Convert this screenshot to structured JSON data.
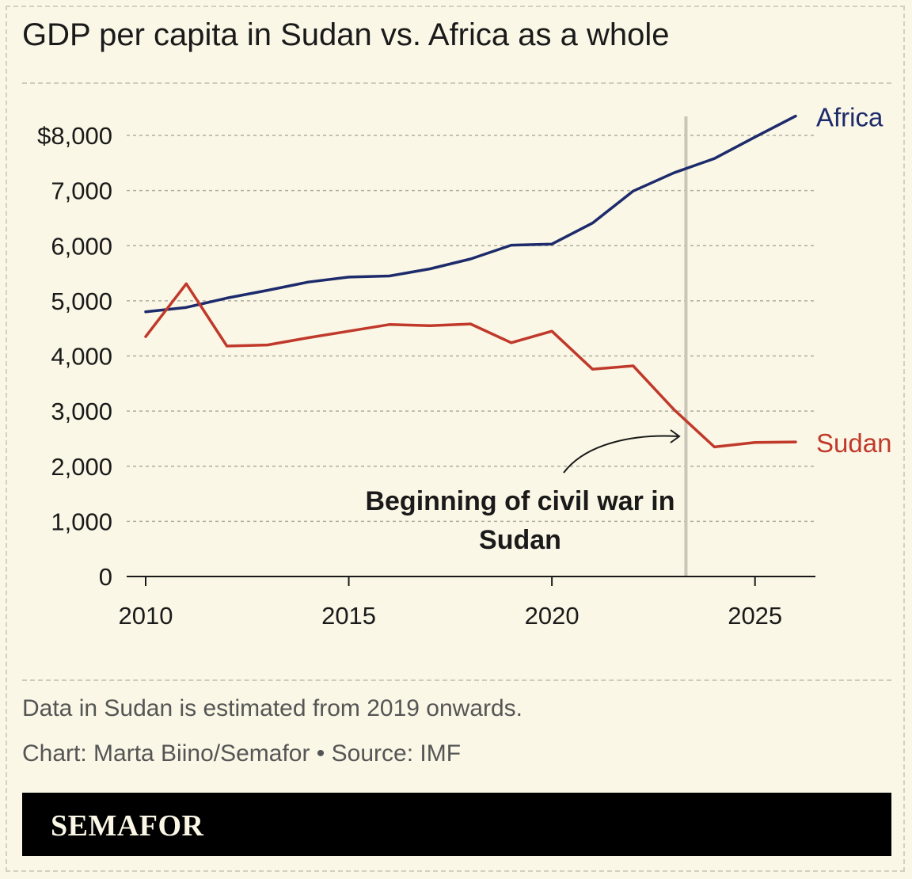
{
  "title": "GDP per capita in Sudan vs. Africa as a whole",
  "footnote": "Data in Sudan is estimated from 2019 onwards.",
  "credit": "Chart: Marta Biino/Semafor • Source: IMF",
  "brand": "SEMAFOR",
  "annotation": {
    "line1": "Beginning of civil war in",
    "line2": "Sudan",
    "marker_year": 2023.3
  },
  "colors": {
    "background": "#faf7e6",
    "africa": "#1d2a6b",
    "sudan": "#c0392b",
    "marker": "#c8c6b8",
    "grid": "#b0ad9f"
  },
  "chart_data": {
    "type": "line",
    "x": [
      2010,
      2011,
      2012,
      2013,
      2014,
      2015,
      2016,
      2017,
      2018,
      2019,
      2020,
      2021,
      2022,
      2023,
      2024,
      2025,
      2026
    ],
    "series": [
      {
        "name": "Africa",
        "values": [
          4800,
          4880,
          5050,
          5190,
          5340,
          5430,
          5450,
          5580,
          5760,
          6010,
          6030,
          6410,
          6990,
          7320,
          7580,
          7970,
          8350
        ]
      },
      {
        "name": "Sudan",
        "values": [
          4350,
          5310,
          4180,
          4200,
          4330,
          4450,
          4570,
          4550,
          4580,
          4240,
          4450,
          3760,
          3820,
          3030,
          2350,
          2430,
          2440
        ]
      }
    ],
    "xticks": [
      2010,
      2015,
      2020,
      2025
    ],
    "yticks": [
      0,
      1000,
      2000,
      3000,
      4000,
      5000,
      6000,
      7000,
      8000
    ],
    "ytick_labels": [
      "0",
      "1,000",
      "2,000",
      "3,000",
      "4,000",
      "5,000",
      "6,000",
      "7,000",
      "$8,000"
    ],
    "xlim": [
      2010,
      2026
    ],
    "ylim": [
      0,
      8000
    ],
    "grid": "horizontal dashed",
    "legend": "inline labels at line ends"
  }
}
